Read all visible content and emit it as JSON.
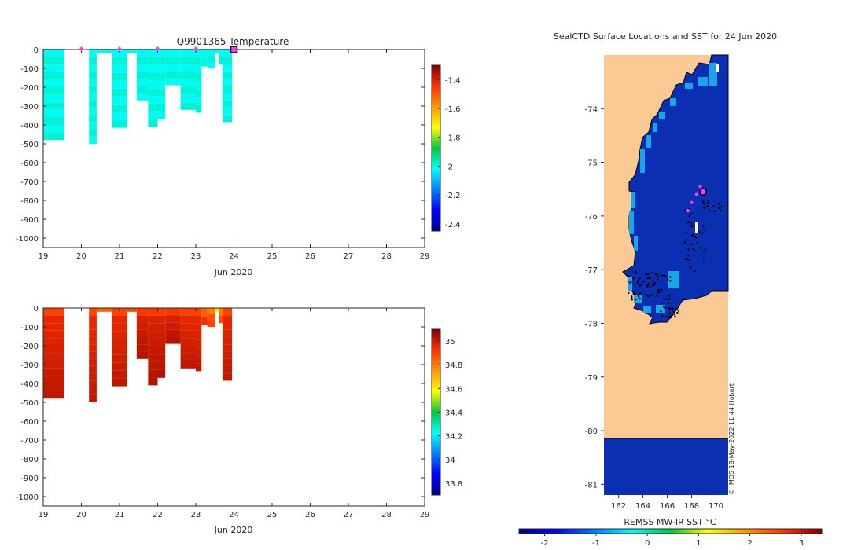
{
  "chart_data": [
    {
      "type": "heatmap",
      "title": "Q9901365  Temperature",
      "xlabel": "Jun 2020",
      "x_ticks": [
        "19",
        "20",
        "21",
        "22",
        "23",
        "24",
        "25",
        "26",
        "27",
        "28",
        "29"
      ],
      "xlim": [
        19,
        29
      ],
      "ylim": [
        -1050,
        0
      ],
      "y_ticks": [
        "0",
        "-100",
        "-200",
        "-300",
        "-400",
        "-500",
        "-600",
        "-700",
        "-800",
        "-900",
        "-1000"
      ],
      "colorbar": {
        "min": -2.45,
        "max": -1.3,
        "ticks": [
          "-1.4",
          "-1.6",
          "-1.8",
          "-2",
          "-2.2",
          "-2.4"
        ],
        "tick_values": [
          -1.4,
          -1.6,
          -1.8,
          -2,
          -2.2,
          -2.4
        ]
      },
      "profile_markers_day": [
        20,
        21,
        22,
        23
      ],
      "current_marker_day": 24,
      "profiles": [
        {
          "t0": 19.0,
          "t1": 19.55,
          "depth": 480,
          "value": -2.0
        },
        {
          "t0": 20.2,
          "t1": 20.4,
          "depth": 500,
          "value": -2.0
        },
        {
          "t0": 20.4,
          "t1": 20.8,
          "depth": 20,
          "value": -2.0
        },
        {
          "t0": 20.8,
          "t1": 21.2,
          "depth": 415,
          "value": -2.0
        },
        {
          "t0": 21.2,
          "t1": 21.45,
          "depth": 20,
          "value": -2.0
        },
        {
          "t0": 21.45,
          "t1": 21.75,
          "depth": 270,
          "value": -2.0
        },
        {
          "t0": 21.75,
          "t1": 22.0,
          "depth": 410,
          "value": -2.0
        },
        {
          "t0": 22.0,
          "t1": 22.2,
          "depth": 370,
          "value": -2.0
        },
        {
          "t0": 22.2,
          "t1": 22.6,
          "depth": 190,
          "value": -2.0
        },
        {
          "t0": 22.6,
          "t1": 23.0,
          "depth": 320,
          "value": -2.0
        },
        {
          "t0": 23.0,
          "t1": 23.15,
          "depth": 335,
          "value": -2.0
        },
        {
          "t0": 23.15,
          "t1": 23.3,
          "depth": 90,
          "value": -2.0
        },
        {
          "t0": 23.3,
          "t1": 23.5,
          "depth": 100,
          "value": -2.0
        },
        {
          "t0": 23.5,
          "t1": 23.6,
          "depth": 20,
          "value": -2.0
        },
        {
          "t0": 23.6,
          "t1": 23.7,
          "depth": 80,
          "value": -2.0
        },
        {
          "t0": 23.7,
          "t1": 23.95,
          "depth": 385,
          "value": -2.0
        }
      ]
    },
    {
      "type": "heatmap",
      "title": "",
      "xlabel": "Jun 2020",
      "x_ticks": [
        "19",
        "20",
        "21",
        "22",
        "23",
        "24",
        "25",
        "26",
        "27",
        "28",
        "29"
      ],
      "xlim": [
        19,
        29
      ],
      "ylim": [
        -1050,
        0
      ],
      "y_ticks": [
        "0",
        "-100",
        "-200",
        "-300",
        "-400",
        "-500",
        "-600",
        "-700",
        "-800",
        "-900",
        "-1000"
      ],
      "colorbar": {
        "min": 33.7,
        "max": 35.1,
        "ticks": [
          "35",
          "34.8",
          "34.6",
          "34.4",
          "34.2",
          "34",
          "33.8"
        ],
        "tick_values": [
          35,
          34.8,
          34.6,
          34.4,
          34.2,
          34,
          33.8
        ]
      },
      "profiles": [
        {
          "t0": 19.0,
          "t1": 19.55,
          "depth": 480,
          "value": 34.95
        },
        {
          "t0": 20.2,
          "t1": 20.4,
          "depth": 500,
          "value": 34.95
        },
        {
          "t0": 20.4,
          "t1": 20.8,
          "depth": 20,
          "value": 34.9
        },
        {
          "t0": 20.8,
          "t1": 21.2,
          "depth": 415,
          "value": 34.95
        },
        {
          "t0": 21.2,
          "t1": 21.45,
          "depth": 20,
          "value": 34.95
        },
        {
          "t0": 21.45,
          "t1": 21.75,
          "depth": 270,
          "value": 34.97
        },
        {
          "t0": 21.75,
          "t1": 22.0,
          "depth": 410,
          "value": 34.97
        },
        {
          "t0": 22.0,
          "t1": 22.2,
          "depth": 370,
          "value": 34.97
        },
        {
          "t0": 22.2,
          "t1": 22.6,
          "depth": 190,
          "value": 34.97
        },
        {
          "t0": 22.6,
          "t1": 23.0,
          "depth": 320,
          "value": 34.95
        },
        {
          "t0": 23.0,
          "t1": 23.15,
          "depth": 335,
          "value": 34.95
        },
        {
          "t0": 23.15,
          "t1": 23.3,
          "depth": 90,
          "value": 34.9
        },
        {
          "t0": 23.3,
          "t1": 23.5,
          "depth": 100,
          "value": 34.85
        },
        {
          "t0": 23.5,
          "t1": 23.6,
          "depth": 20,
          "value": 34.6
        },
        {
          "t0": 23.6,
          "t1": 23.7,
          "depth": 80,
          "value": 34.85
        },
        {
          "t0": 23.7,
          "t1": 23.95,
          "depth": 385,
          "value": 34.95
        }
      ]
    },
    {
      "type": "map",
      "title": "SealCTD Surface Locations and SST for 24 Jun 2020",
      "x_ticks": [
        "162",
        "164",
        "166",
        "168",
        "170"
      ],
      "x_tick_values": [
        162,
        164,
        166,
        168,
        170
      ],
      "y_ticks": [
        "-74",
        "-75",
        "-76",
        "-77",
        "-78",
        "-79",
        "-80",
        "-81"
      ],
      "y_tick_values": [
        -74,
        -75,
        -76,
        -77,
        -78,
        -79,
        -80,
        -81
      ],
      "xlim": [
        160.8,
        171.0
      ],
      "ylim": [
        -81.2,
        -73.0
      ],
      "colorbar": {
        "label": "REMSS MW-IR SST °C",
        "min": -2.5,
        "max": 3.4,
        "ticks": [
          "-2",
          "-1",
          "0",
          "1",
          "2",
          "3"
        ],
        "tick_values": [
          -2,
          -1,
          0,
          1,
          2,
          3
        ]
      },
      "current_location": {
        "lon": 168.95,
        "lat": -75.55
      },
      "recent_locations": [
        {
          "lon": 168.7,
          "lat": -75.45
        },
        {
          "lon": 168.4,
          "lat": -75.6
        },
        {
          "lon": 168.0,
          "lat": -75.75
        },
        {
          "lon": 167.7,
          "lat": -75.9
        }
      ],
      "credit": "© IMOS 18-May-2022 11:44 Hobart"
    }
  ],
  "colors": {
    "temperature_fill": "#13c48d",
    "salinity_fill": "#b01910",
    "marker": "#ff3bf2",
    "land": "#fbc994",
    "ocean": "#0b2fb2",
    "ice_edge": "#1aa5e6",
    "track": "#000000"
  }
}
